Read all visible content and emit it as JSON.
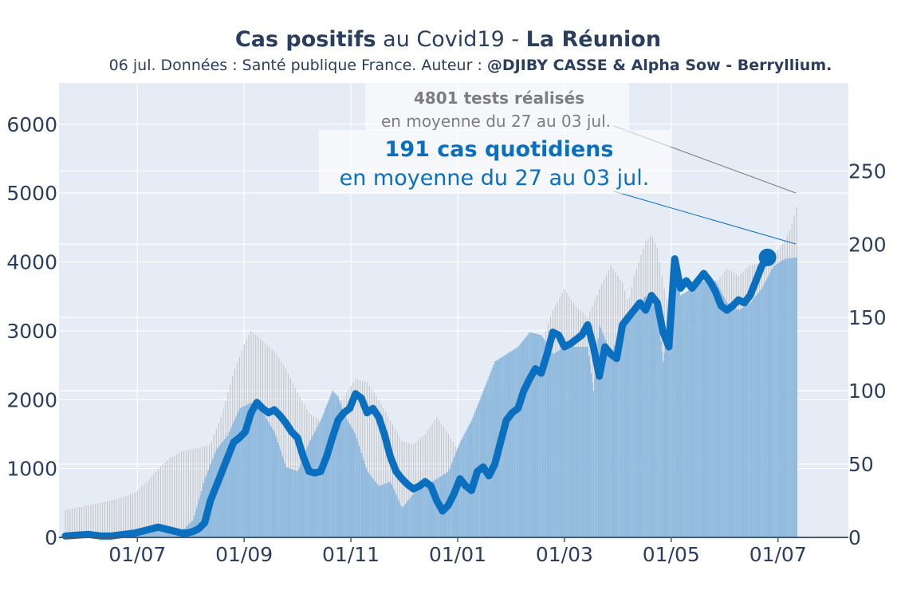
{
  "title": {
    "part1": "Cas positifs",
    "part2": " au Covid19 - ",
    "part3": "La Réunion"
  },
  "subtitle": {
    "part1": "06 jul. Données : Santé publique France. Auteur : ",
    "part2": "@DJIBY CASSE & Alpha Sow - Berryllium."
  },
  "annotations": {
    "tests_line1": "4801 tests réalisés",
    "tests_line2": "en moyenne du 27 au 03 jul.",
    "cases_line1": "191 cas quotidiens",
    "cases_line2": "en moyenne du 27 au 03 jul."
  },
  "colors": {
    "plot_bg": "#e5ecf6",
    "grid": "#ffffff",
    "cases_line": "#0a6fbf",
    "cases_bars": "#8fb9dd",
    "tests_bars": "#c4c4c4",
    "text": "#2a3f5f",
    "tests_annotation": "#7d7d7d"
  },
  "chart_data": {
    "type": "line",
    "x_ticks": [
      "01/07",
      "01/09",
      "01/11",
      "01/01",
      "01/03",
      "01/05",
      "01/07"
    ],
    "y_left": {
      "ticks": [
        0,
        1000,
        2000,
        3000,
        4000,
        5000,
        6000
      ],
      "range": [
        0,
        6600
      ]
    },
    "y_right": {
      "ticks": [
        0,
        50,
        100,
        150,
        200,
        250
      ],
      "range": [
        0,
        310
      ]
    },
    "grid": true,
    "series": [
      {
        "axis": "left",
        "style": "bars",
        "points": [
          [
            0,
            400
          ],
          [
            15,
            450
          ],
          [
            30,
            500
          ],
          [
            45,
            560
          ],
          [
            60,
            650
          ],
          [
            70,
            800
          ],
          [
            80,
            1000
          ],
          [
            90,
            1150
          ],
          [
            100,
            1250
          ],
          [
            115,
            1300
          ],
          [
            125,
            1350
          ],
          [
            135,
            1800
          ],
          [
            145,
            2400
          ],
          [
            155,
            2850
          ],
          [
            160,
            3000
          ],
          [
            170,
            2850
          ],
          [
            180,
            2700
          ],
          [
            190,
            2450
          ],
          [
            200,
            2100
          ],
          [
            210,
            1800
          ],
          [
            220,
            1700
          ],
          [
            230,
            1800
          ],
          [
            240,
            2050
          ],
          [
            250,
            2300
          ],
          [
            260,
            2250
          ],
          [
            270,
            2000
          ],
          [
            280,
            1700
          ],
          [
            290,
            1400
          ],
          [
            300,
            1350
          ],
          [
            310,
            1500
          ],
          [
            320,
            1750
          ],
          [
            330,
            1500
          ],
          [
            340,
            1200
          ],
          [
            350,
            1300
          ],
          [
            360,
            2000
          ],
          [
            370,
            2300
          ],
          [
            380,
            2100
          ],
          [
            390,
            2050
          ],
          [
            400,
            2550
          ],
          [
            410,
            2800
          ],
          [
            420,
            3300
          ],
          [
            430,
            3600
          ],
          [
            440,
            3350
          ],
          [
            450,
            3200
          ],
          [
            460,
            3600
          ],
          [
            470,
            3950
          ],
          [
            480,
            3700
          ],
          [
            485,
            3400
          ],
          [
            490,
            3800
          ],
          [
            500,
            4300
          ],
          [
            505,
            4400
          ],
          [
            510,
            4200
          ],
          [
            515,
            3700
          ],
          [
            520,
            3300
          ],
          [
            530,
            3000
          ],
          [
            540,
            3200
          ],
          [
            550,
            3500
          ],
          [
            560,
            3700
          ],
          [
            570,
            3900
          ],
          [
            580,
            3800
          ],
          [
            590,
            3950
          ],
          [
            600,
            4000
          ],
          [
            610,
            4100
          ],
          [
            620,
            4300
          ],
          [
            625,
            4500
          ],
          [
            630,
            4800
          ]
        ]
      },
      {
        "axis": "right",
        "style": "bars",
        "points": [
          [
            0,
            1
          ],
          [
            40,
            2
          ],
          [
            60,
            3
          ],
          [
            70,
            7
          ],
          [
            80,
            6
          ],
          [
            90,
            3
          ],
          [
            100,
            4
          ],
          [
            110,
            12
          ],
          [
            120,
            40
          ],
          [
            130,
            60
          ],
          [
            140,
            70
          ],
          [
            150,
            88
          ],
          [
            160,
            92
          ],
          [
            170,
            85
          ],
          [
            180,
            72
          ],
          [
            190,
            48
          ],
          [
            200,
            45
          ],
          [
            210,
            65
          ],
          [
            220,
            80
          ],
          [
            230,
            100
          ],
          [
            235,
            96
          ],
          [
            240,
            84
          ],
          [
            250,
            70
          ],
          [
            260,
            45
          ],
          [
            270,
            35
          ],
          [
            280,
            38
          ],
          [
            290,
            20
          ],
          [
            300,
            30
          ],
          [
            310,
            35
          ],
          [
            320,
            40
          ],
          [
            330,
            45
          ],
          [
            340,
            65
          ],
          [
            350,
            80
          ],
          [
            360,
            100
          ],
          [
            370,
            120
          ],
          [
            380,
            125
          ],
          [
            390,
            130
          ],
          [
            400,
            140
          ],
          [
            410,
            138
          ],
          [
            420,
            125
          ],
          [
            430,
            130
          ],
          [
            440,
            130
          ],
          [
            450,
            130
          ],
          [
            455,
            100
          ],
          [
            460,
            145
          ],
          [
            470,
            125
          ],
          [
            480,
            145
          ],
          [
            490,
            155
          ],
          [
            500,
            165
          ],
          [
            510,
            155
          ],
          [
            515,
            120
          ],
          [
            520,
            150
          ],
          [
            525,
            190
          ],
          [
            530,
            165
          ],
          [
            540,
            170
          ],
          [
            550,
            175
          ],
          [
            560,
            175
          ],
          [
            570,
            160
          ],
          [
            580,
            155
          ],
          [
            590,
            160
          ],
          [
            600,
            170
          ],
          [
            610,
            185
          ],
          [
            620,
            190
          ],
          [
            630,
            191
          ]
        ]
      },
      {
        "axis": "right",
        "style": "line",
        "points": [
          [
            0,
            1
          ],
          [
            20,
            2
          ],
          [
            30,
            1
          ],
          [
            40,
            1
          ],
          [
            50,
            2
          ],
          [
            60,
            3
          ],
          [
            70,
            5
          ],
          [
            80,
            7
          ],
          [
            85,
            6
          ],
          [
            90,
            5
          ],
          [
            95,
            4
          ],
          [
            100,
            3
          ],
          [
            105,
            3
          ],
          [
            110,
            4
          ],
          [
            115,
            6
          ],
          [
            120,
            10
          ],
          [
            125,
            25
          ],
          [
            130,
            35
          ],
          [
            135,
            45
          ],
          [
            140,
            55
          ],
          [
            145,
            65
          ],
          [
            150,
            68
          ],
          [
            155,
            72
          ],
          [
            160,
            85
          ],
          [
            165,
            92
          ],
          [
            170,
            88
          ],
          [
            175,
            85
          ],
          [
            180,
            87
          ],
          [
            185,
            83
          ],
          [
            190,
            78
          ],
          [
            195,
            72
          ],
          [
            200,
            68
          ],
          [
            205,
            55
          ],
          [
            210,
            45
          ],
          [
            215,
            44
          ],
          [
            220,
            45
          ],
          [
            225,
            55
          ],
          [
            230,
            68
          ],
          [
            235,
            80
          ],
          [
            240,
            85
          ],
          [
            245,
            88
          ],
          [
            250,
            98
          ],
          [
            255,
            95
          ],
          [
            260,
            85
          ],
          [
            265,
            88
          ],
          [
            270,
            82
          ],
          [
            275,
            70
          ],
          [
            280,
            55
          ],
          [
            285,
            45
          ],
          [
            290,
            40
          ],
          [
            295,
            36
          ],
          [
            300,
            33
          ],
          [
            305,
            35
          ],
          [
            310,
            38
          ],
          [
            315,
            35
          ],
          [
            320,
            25
          ],
          [
            325,
            18
          ],
          [
            330,
            22
          ],
          [
            335,
            30
          ],
          [
            340,
            40
          ],
          [
            345,
            35
          ],
          [
            350,
            32
          ],
          [
            355,
            45
          ],
          [
            360,
            48
          ],
          [
            365,
            42
          ],
          [
            370,
            50
          ],
          [
            375,
            65
          ],
          [
            380,
            80
          ],
          [
            385,
            85
          ],
          [
            390,
            88
          ],
          [
            395,
            100
          ],
          [
            400,
            108
          ],
          [
            405,
            115
          ],
          [
            410,
            112
          ],
          [
            415,
            125
          ],
          [
            420,
            140
          ],
          [
            425,
            138
          ],
          [
            430,
            130
          ],
          [
            435,
            132
          ],
          [
            440,
            135
          ],
          [
            445,
            138
          ],
          [
            450,
            145
          ],
          [
            455,
            130
          ],
          [
            460,
            110
          ],
          [
            465,
            130
          ],
          [
            470,
            125
          ],
          [
            475,
            122
          ],
          [
            480,
            145
          ],
          [
            485,
            150
          ],
          [
            490,
            155
          ],
          [
            495,
            160
          ],
          [
            500,
            155
          ],
          [
            505,
            165
          ],
          [
            510,
            160
          ],
          [
            515,
            140
          ],
          [
            520,
            130
          ],
          [
            525,
            190
          ],
          [
            530,
            170
          ],
          [
            535,
            175
          ],
          [
            540,
            170
          ],
          [
            545,
            175
          ],
          [
            550,
            180
          ],
          [
            555,
            175
          ],
          [
            560,
            168
          ],
          [
            565,
            158
          ],
          [
            570,
            155
          ],
          [
            575,
            158
          ],
          [
            580,
            162
          ],
          [
            585,
            160
          ],
          [
            590,
            165
          ],
          [
            595,
            175
          ],
          [
            600,
            185
          ],
          [
            605,
            191
          ]
        ]
      }
    ]
  }
}
